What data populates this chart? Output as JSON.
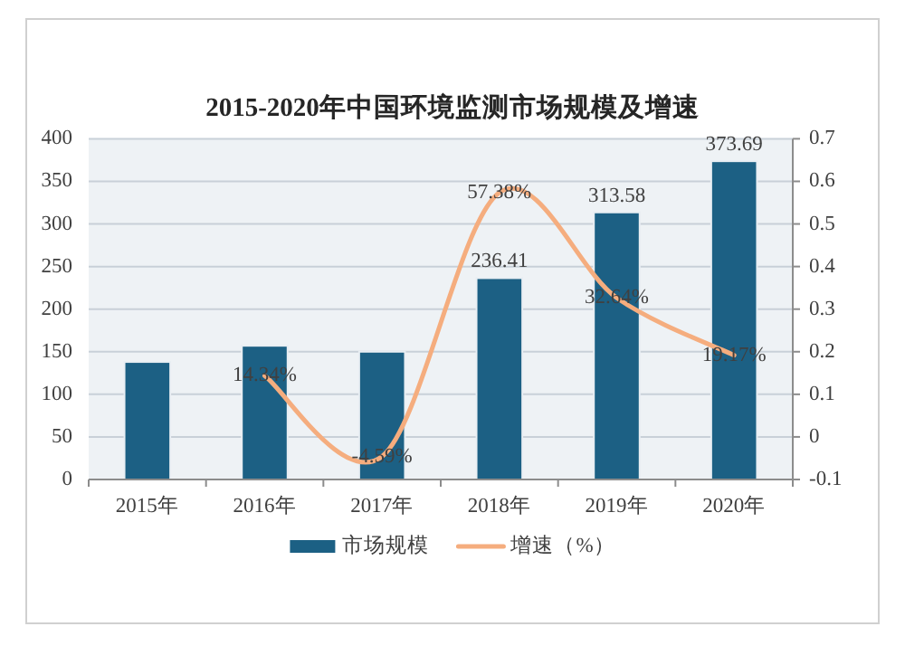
{
  "chart_data": {
    "type": "bar",
    "title": "2015-2020年中国环境监测市场规模及增速",
    "categories": [
      "2015年",
      "2016年",
      "2017年",
      "2018年",
      "2019年",
      "2020年"
    ],
    "series": [
      {
        "name": "市场规模",
        "color": "#1c6084",
        "values": [
          138,
          157,
          150,
          236.41,
          313.58,
          373.69
        ],
        "value_labels": [
          null,
          null,
          null,
          "236.41",
          "313.58",
          "373.69"
        ]
      },
      {
        "name": "增速（%）",
        "type": "line",
        "axis": "y2",
        "color": "#f5ad7e",
        "values": [
          null,
          0.1434,
          -0.0459,
          0.5738,
          0.3264,
          0.1917
        ],
        "value_labels": [
          null,
          "14.34%",
          "-4.59%",
          "57.38%",
          "32.64%",
          "19.17%"
        ]
      }
    ],
    "ylim": [
      0,
      400
    ],
    "yticks": [
      0,
      50,
      100,
      150,
      200,
      250,
      300,
      350,
      400
    ],
    "y2lim": [
      -0.1,
      0.7
    ],
    "y2ticks": [
      -0.1,
      0,
      0.1,
      0.2,
      0.3,
      0.4,
      0.5,
      0.6,
      0.7
    ],
    "grid": "y",
    "legend": "bottom"
  }
}
